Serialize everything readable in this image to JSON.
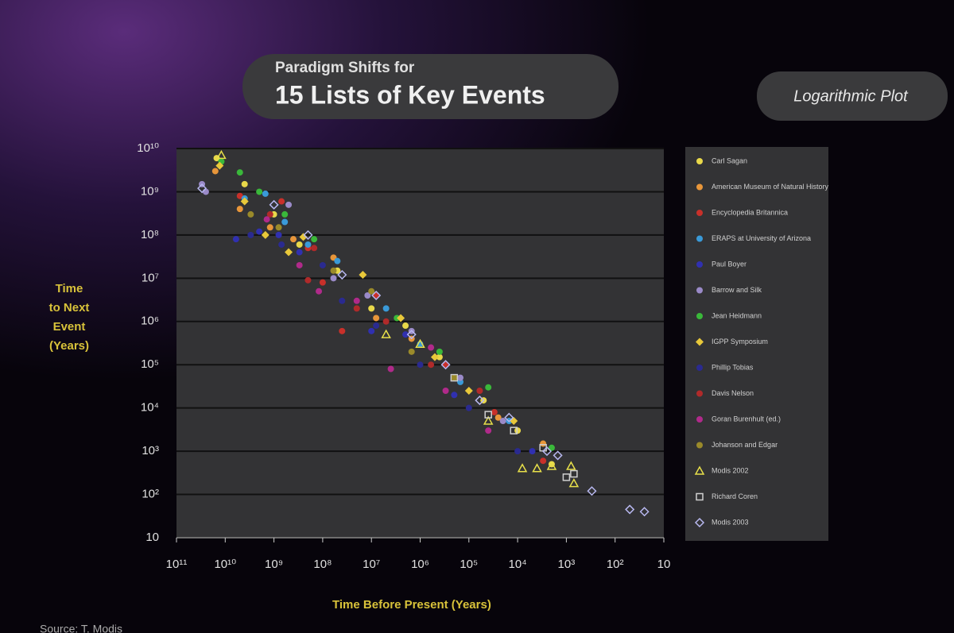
{
  "chart_data": {
    "type": "scatter",
    "title": "15 Lists of Key Events",
    "subtitle": "Paradigm Shifts for",
    "annotation": "Logarithmic Plot",
    "ylabel": [
      "Time",
      "to Next",
      "Event",
      "(Years)"
    ],
    "xlabel": "Time Before Present (Years)",
    "source": "Source: T. Modis",
    "xscale": "log",
    "yscale": "log",
    "grid": true,
    "legend": "right",
    "xlim": [
      100000000000.0,
      10
    ],
    "ylim": [
      10,
      10000000000.0
    ],
    "xticks": [
      {
        "value": 100000000000.0,
        "label": "10¹¹"
      },
      {
        "value": 10000000000.0,
        "label": "10¹⁰"
      },
      {
        "value": 1000000000.0,
        "label": "10⁹"
      },
      {
        "value": 100000000.0,
        "label": "10⁸"
      },
      {
        "value": 10000000.0,
        "label": "10⁷"
      },
      {
        "value": 1000000.0,
        "label": "10⁶"
      },
      {
        "value": 100000.0,
        "label": "10⁵"
      },
      {
        "value": 10000.0,
        "label": "10⁴"
      },
      {
        "value": 1000.0,
        "label": "10³"
      },
      {
        "value": 100,
        "label": "10²"
      },
      10
    ],
    "yticks": [
      {
        "value": 10000000000.0,
        "label": "10¹⁰"
      },
      {
        "value": 1000000000.0,
        "label": "10⁹"
      },
      {
        "value": 100000000.0,
        "label": "10⁸"
      },
      {
        "value": 10000000.0,
        "label": "10⁷"
      },
      {
        "value": 1000000.0,
        "label": "10⁶"
      },
      {
        "value": 100000.0,
        "label": "10⁵"
      },
      {
        "value": 10000.0,
        "label": "10⁴"
      },
      {
        "value": 1000.0,
        "label": "10³"
      },
      {
        "value": 100,
        "label": "10²"
      },
      10
    ],
    "series": [
      {
        "name": "Carl Sagan",
        "color": "#e8d84a",
        "marker": "circle",
        "x": [
          15000000000.0,
          4000000000.0,
          1000000000.0,
          300000000.0,
          50000000.0,
          10000000.0,
          2000000.0,
          400000.0,
          50000.0,
          10000.0,
          2000.0
        ],
        "y": [
          6000000000.0,
          1500000000.0,
          300000000.0,
          60000000.0,
          15000000.0,
          2000000.0,
          800000.0,
          150000.0,
          15000.0,
          3000.0,
          500.0
        ]
      },
      {
        "name": "American Museum of Natural History",
        "color": "#e8963a",
        "marker": "circle",
        "x": [
          16000000000.0,
          5000000000.0,
          1200000000.0,
          400000000.0,
          60000000.0,
          8000000.0,
          1500000.0,
          200000.0,
          25000.0,
          3000.0
        ],
        "y": [
          3000000000.0,
          400000000.0,
          150000000.0,
          80000000.0,
          30000000.0,
          1200000.0,
          400000.0,
          50000.0,
          6000.0,
          1500.0
        ]
      },
      {
        "name": "Encyclopedia Britannica",
        "color": "#c8302a",
        "marker": "circle",
        "x": [
          5000000000.0,
          700000000.0,
          200000000.0,
          100000000.0,
          40000000.0,
          8000000.0,
          300000.0,
          30000.0,
          3000.0
        ],
        "y": [
          800000000.0,
          600000000.0,
          50000000.0,
          8000000.0,
          600000.0,
          4000000.0,
          100000.0,
          8000.0,
          600.0
        ]
      },
      {
        "name": "ERAPS at University of Arizona",
        "color": "#3a9ad8",
        "marker": "circle",
        "x": [
          4000000000.0,
          1500000000.0,
          600000000.0,
          200000000.0,
          50000000.0,
          5000000.0,
          1000000.0,
          150000.0,
          15000.0
        ],
        "y": [
          700000000.0,
          900000000.0,
          200000000.0,
          60000000.0,
          25000000.0,
          2000000.0,
          300000.0,
          40000.0,
          5000.0
        ]
      },
      {
        "name": "Paul Boyer",
        "color": "#3030b0",
        "marker": "circle",
        "x": [
          6000000000.0,
          2000000000.0,
          800000000.0,
          300000000.0,
          10000000.0,
          2000000.0,
          200000.0,
          5000.0
        ],
        "y": [
          80000000.0,
          120000000.0,
          100000000.0,
          40000000.0,
          600000.0,
          500000.0,
          20000.0,
          1000.0
        ]
      },
      {
        "name": "Barrow and Silk",
        "color": "#9a8ac8",
        "marker": "circle",
        "x": [
          30000000000.0,
          25000000000.0,
          500000000.0,
          60000000.0,
          12000000.0,
          1500000.0,
          150000.0,
          20000.0
        ],
        "y": [
          1500000000.0,
          1000000000.0,
          500000000.0,
          10000000.0,
          4000000.0,
          600000.0,
          50000.0,
          5000.0
        ]
      },
      {
        "name": "Jean Heidmann",
        "color": "#3ab83a",
        "marker": "circle",
        "x": [
          12000000000.0,
          5000000000.0,
          2000000000.0,
          600000000.0,
          150000000.0,
          3000000.0,
          400000.0,
          40000.0,
          2000.0
        ],
        "y": [
          5000000000.0,
          2800000000.0,
          1000000000.0,
          300000000.0,
          80000000.0,
          1200000.0,
          200000.0,
          30000.0,
          1200.0
        ]
      },
      {
        "name": "IGPP Symposium",
        "color": "#e8c83a",
        "marker": "diamond",
        "x": [
          13000000000.0,
          4000000000.0,
          1500000000.0,
          500000000.0,
          250000000.0,
          15000000.0,
          2500000.0,
          500000.0,
          100000.0,
          12000.0
        ],
        "y": [
          4000000000.0,
          600000000.0,
          100000000.0,
          40000000.0,
          90000000.0,
          12000000.0,
          1200000.0,
          150000.0,
          25000.0,
          5000.0
        ]
      },
      {
        "name": "Phillip Tobias",
        "color": "#2a2a90",
        "marker": "circle",
        "x": [
          3000000000.0,
          700000000.0,
          100000000.0,
          40000000.0,
          8000000.0,
          1000000.0,
          100000.0,
          10000.0
        ],
        "y": [
          100000000.0,
          60000000.0,
          20000000.0,
          3000000.0,
          800000.0,
          100000.0,
          10000.0,
          1000.0
        ]
      },
      {
        "name": "Davis Nelson",
        "color": "#b02a2a",
        "marker": "circle",
        "x": [
          1200000000.0,
          200000000.0,
          150000000.0,
          20000000.0,
          5000000.0,
          600000.0,
          60000.0
        ],
        "y": [
          300000000.0,
          9000000.0,
          50000000.0,
          2000000.0,
          1000000.0,
          100000.0,
          25000.0
        ]
      },
      {
        "name": "Goran Burenhult (ed.)",
        "color": "#b02a8a",
        "marker": "circle",
        "x": [
          1400000000.0,
          300000000.0,
          120000000.0,
          20000000.0,
          4000000.0,
          600000.0,
          300000.0,
          40000.0
        ],
        "y": [
          230000000.0,
          20000000.0,
          5000000.0,
          3000000.0,
          80000.0,
          250000.0,
          25000.0,
          3000.0
        ]
      },
      {
        "name": "Johanson and Edgar",
        "color": "#9a8a2a",
        "marker": "circle",
        "x": [
          3000000000.0,
          800000000.0,
          60000000.0,
          10000000.0,
          1500000.0,
          200000.0
        ],
        "y": [
          300000000.0,
          150000000.0,
          15000000.0,
          5000000.0,
          200000.0,
          50000.0
        ]
      },
      {
        "name": "Modis 2002",
        "color": "#e8e04a",
        "marker": "triangle-open",
        "x": [
          12000000000.0,
          5000000.0,
          1000000.0,
          40000.0,
          8000.0,
          4000.0,
          2000.0,
          800,
          700
        ],
        "y": [
          7000000000.0,
          500000.0,
          300000.0,
          5000.0,
          400,
          400,
          450,
          450,
          180
        ]
      },
      {
        "name": "Richard Coren",
        "color": "#d0d0d0",
        "marker": "square-open",
        "x": [
          200000.0,
          40000.0,
          12000.0,
          3000.0,
          1000.0,
          700
        ],
        "y": [
          50000.0,
          7000.0,
          3000.0,
          1200.0,
          250,
          300
        ]
      },
      {
        "name": "Modis 2003",
        "color": "#b8b8f0",
        "marker": "diamond-open",
        "x": [
          30000000000.0,
          1000000000.0,
          200000000.0,
          40000000.0,
          8000000.0,
          1500000.0,
          300000.0,
          60000.0,
          15000.0,
          2500.0,
          1500.0,
          300,
          50,
          25
        ],
        "y": [
          1200000000.0,
          500000000.0,
          100000000.0,
          12000000.0,
          4000000.0,
          500000.0,
          100000.0,
          15000.0,
          6000.0,
          1000.0,
          800,
          120,
          45,
          40
        ]
      }
    ]
  }
}
